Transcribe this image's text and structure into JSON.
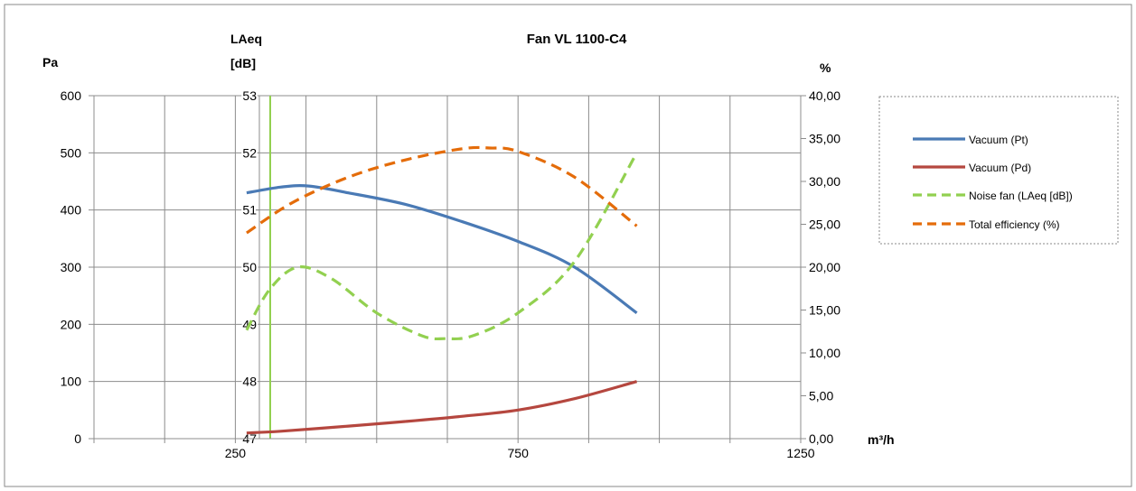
{
  "chart_data": {
    "type": "line",
    "title": "Fan VL 1100-C4",
    "xlabel": "m³/h",
    "x_ticks": [
      "250",
      "750",
      "1250"
    ],
    "axes": {
      "pa": {
        "label": "Pa",
        "range": [
          0,
          600
        ],
        "ticks": [
          "0",
          "100",
          "200",
          "300",
          "400",
          "500",
          "600"
        ]
      },
      "laeq": {
        "label_line1": "LAeq",
        "label_line2": "[dB]",
        "range": [
          47,
          53
        ],
        "ticks": [
          "47",
          "48",
          "49",
          "50",
          "51",
          "52",
          "53"
        ]
      },
      "pct": {
        "label": "%",
        "range": [
          0,
          40
        ],
        "ticks": [
          "0,00",
          "5,00",
          "10,00",
          "15,00",
          "20,00",
          "25,00",
          "30,00",
          "35,00",
          "40,00"
        ]
      }
    },
    "legend_position": "right",
    "grid": true,
    "series": [
      {
        "name": "Vacuum (Pt)",
        "axis": "pa",
        "color": "#4a7ab5",
        "dashed": false,
        "x": [
          270,
          330,
          380,
          450,
          550,
          650,
          750,
          850,
          960
        ],
        "y": [
          430,
          440,
          442,
          430,
          410,
          380,
          345,
          300,
          220
        ]
      },
      {
        "name": "Vacuum (Pd)",
        "axis": "pa",
        "color": "#b5473f",
        "dashed": false,
        "x": [
          270,
          330,
          450,
          550,
          650,
          750,
          850,
          960
        ],
        "y": [
          10,
          13,
          22,
          30,
          39,
          50,
          70,
          100
        ]
      },
      {
        "name": "Noise fan (LAeq [dB])",
        "axis": "laeq",
        "color": "#92d050",
        "dashed": true,
        "x": [
          270,
          310,
          360,
          420,
          500,
          580,
          620,
          670,
          750,
          850,
          960
        ],
        "y": [
          48.9,
          49.6,
          50.0,
          49.8,
          49.2,
          48.8,
          48.75,
          48.8,
          49.2,
          50.1,
          52.0
        ]
      },
      {
        "name": "Total efficiency (%)",
        "axis": "pct",
        "color": "#e46c0a",
        "dashed": true,
        "x": [
          270,
          350,
          450,
          550,
          650,
          700,
          750,
          850,
          960
        ],
        "y": [
          24,
          27.5,
          30.5,
          32.5,
          33.8,
          33.9,
          33.5,
          30.5,
          24.8
        ]
      }
    ]
  }
}
